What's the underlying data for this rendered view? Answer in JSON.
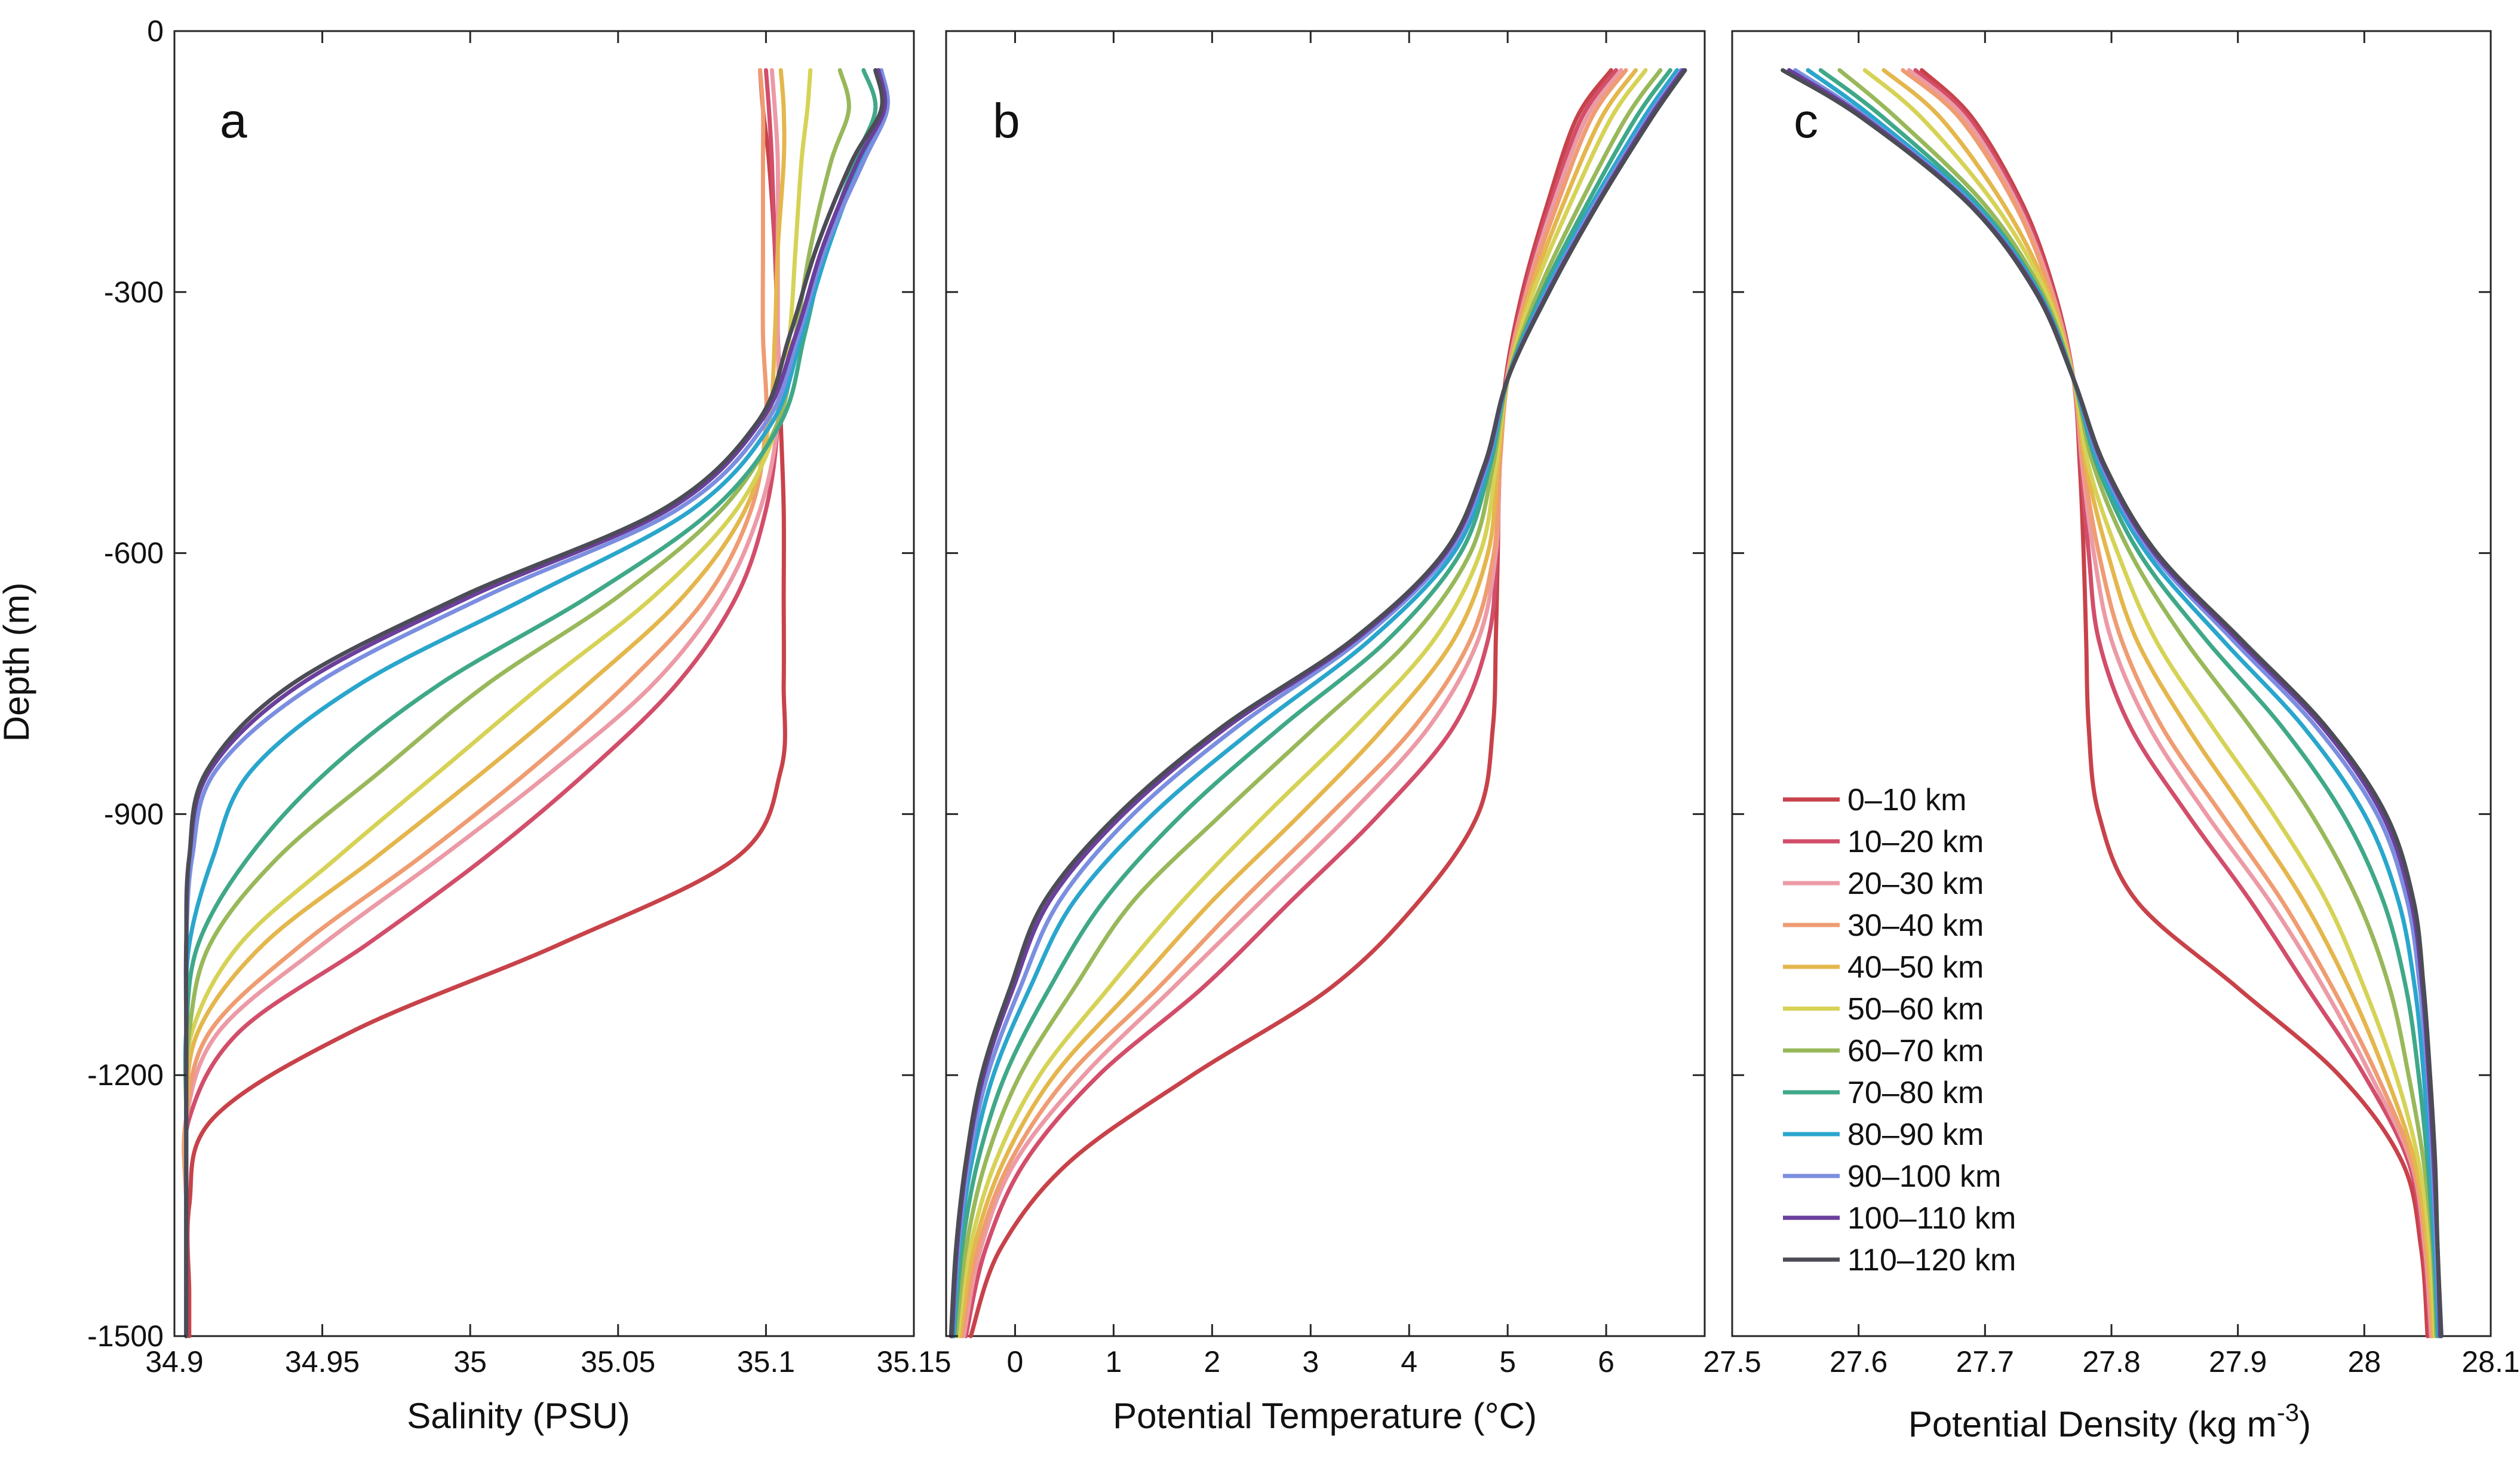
{
  "figure": {
    "ylabel": "Depth (m)"
  },
  "legend": {
    "labels": [
      "0–10 km",
      "10–20 km",
      "20–30 km",
      "30–40 km",
      "40–50 km",
      "50–60 km",
      "60–70 km",
      "70–80 km",
      "80–90 km",
      "90–100 km",
      "100–110 km",
      "110–120 km"
    ]
  },
  "colors": [
    "#c8424a",
    "#d24e6a",
    "#ec9aa6",
    "#ef9c72",
    "#e4b64c",
    "#d6d256",
    "#98b85a",
    "#3fa888",
    "#2aa6cc",
    "#7b8ee0",
    "#6b3f9c",
    "#4c4c56"
  ],
  "chart_data": [
    {
      "type": "line",
      "panel": "a",
      "title": "",
      "xlabel": "Salinity (PSU)",
      "ylabel": "Depth (m)",
      "xlim": [
        34.9,
        35.15
      ],
      "ylim": [
        -1500,
        0
      ],
      "xticks": [
        34.9,
        34.95,
        35,
        35.05,
        35.1,
        35.15
      ],
      "xtick_labels": [
        "34.9",
        "34.95",
        "35",
        "35.05",
        "35.1",
        "35.15"
      ],
      "yticks": [
        0,
        -300,
        -600,
        -900,
        -1200,
        -1500
      ],
      "ytick_labels": [
        "0",
        "-300",
        "-600",
        "-900",
        "-1200",
        "-1500"
      ],
      "depths": [
        -45,
        -90,
        -150,
        -250,
        -350,
        -450,
        -550,
        -650,
        -750,
        -850,
        -950,
        -1050,
        -1150,
        -1250,
        -1350,
        -1450,
        -1500
      ],
      "series": [
        {
          "name": "0–10 km",
          "values": [
            35.098,
            35.099,
            35.101,
            35.103,
            35.104,
            35.105,
            35.106,
            35.106,
            35.106,
            35.105,
            35.09,
            35.03,
            34.96,
            34.913,
            34.905,
            34.905,
            34.905
          ]
        },
        {
          "name": "10–20 km",
          "values": [
            35.1,
            35.101,
            35.102,
            35.103,
            35.104,
            35.104,
            35.1,
            35.09,
            35.07,
            35.04,
            35.005,
            34.965,
            34.922,
            34.905,
            34.904,
            34.904,
            34.904
          ]
        },
        {
          "name": "20–30 km",
          "values": [
            35.102,
            35.103,
            35.104,
            35.104,
            35.104,
            35.104,
            35.098,
            35.085,
            35.062,
            35.028,
            34.99,
            34.95,
            34.915,
            34.904,
            34.904,
            34.904,
            34.904
          ]
        },
        {
          "name": "30–40 km",
          "values": [
            35.098,
            35.099,
            35.099,
            35.099,
            35.099,
            35.1,
            35.095,
            35.08,
            35.053,
            35.02,
            34.983,
            34.943,
            34.912,
            34.904,
            34.904,
            34.904,
            34.904
          ]
        },
        {
          "name": "40–50 km",
          "values": [
            35.105,
            35.106,
            35.106,
            35.104,
            35.103,
            35.101,
            35.093,
            35.072,
            35.04,
            35.005,
            34.968,
            34.93,
            34.908,
            34.904,
            34.904,
            34.904,
            34.904
          ]
        },
        {
          "name": "50–60 km",
          "values": [
            35.115,
            35.114,
            35.112,
            35.11,
            35.108,
            35.104,
            35.09,
            35.062,
            35.025,
            34.99,
            34.955,
            34.922,
            34.906,
            34.904,
            34.904,
            34.904,
            34.904
          ]
        },
        {
          "name": "60–70 km",
          "values": [
            35.125,
            35.128,
            35.122,
            35.115,
            35.11,
            35.104,
            35.085,
            35.05,
            35.006,
            34.97,
            34.935,
            34.912,
            34.905,
            34.904,
            34.904,
            34.904,
            34.904
          ]
        },
        {
          "name": "70–80 km",
          "values": [
            35.133,
            35.137,
            35.13,
            35.12,
            35.113,
            35.105,
            35.082,
            35.04,
            34.99,
            34.952,
            34.925,
            34.908,
            34.904,
            34.904,
            34.904,
            34.904,
            34.904
          ]
        },
        {
          "name": "80–90 km",
          "values": [
            35.138,
            35.14,
            35.132,
            35.121,
            35.112,
            35.102,
            35.075,
            35.02,
            34.963,
            34.926,
            34.913,
            34.905,
            34.904,
            34.904,
            34.904,
            34.904,
            34.904
          ]
        },
        {
          "name": "90–100 km",
          "values": [
            35.139,
            35.141,
            35.133,
            35.12,
            35.111,
            35.1,
            35.07,
            35.005,
            34.948,
            34.914,
            34.906,
            34.904,
            34.904,
            34.904,
            34.904,
            34.904,
            34.904
          ]
        },
        {
          "name": "100–110 km",
          "values": [
            35.138,
            35.14,
            35.131,
            35.119,
            35.11,
            35.098,
            35.067,
            35.0,
            34.943,
            34.912,
            34.905,
            34.904,
            34.904,
            34.904,
            34.904,
            34.904,
            34.904
          ]
        },
        {
          "name": "110–120 km",
          "values": [
            35.137,
            35.139,
            35.129,
            35.117,
            35.108,
            35.097,
            35.065,
            34.997,
            34.94,
            34.911,
            34.905,
            34.904,
            34.904,
            34.904,
            34.904,
            34.904,
            34.904
          ]
        }
      ]
    },
    {
      "type": "line",
      "panel": "b",
      "title": "",
      "xlabel": "Potential Temperature (°C)",
      "ylabel": "",
      "xlim": [
        -0.7,
        7.0
      ],
      "ylim": [
        -1500,
        0
      ],
      "xticks": [
        0,
        1,
        2,
        3,
        4,
        5,
        6
      ],
      "xtick_labels": [
        "0",
        "1",
        "2",
        "3",
        "4",
        "5",
        "6"
      ],
      "yticks": [
        0,
        -300,
        -600,
        -900,
        -1200,
        -1500
      ],
      "ytick_labels": [
        "",
        "",
        "",
        "",
        "",
        ""
      ],
      "depths": [
        -45,
        -100,
        -200,
        -300,
        -400,
        -500,
        -600,
        -700,
        -800,
        -900,
        -1000,
        -1100,
        -1200,
        -1300,
        -1400,
        -1500
      ],
      "series": [
        {
          "name": "0–10 km",
          "values": [
            6.05,
            5.7,
            5.4,
            5.15,
            4.98,
            4.92,
            4.9,
            4.88,
            4.85,
            4.7,
            4.1,
            3.2,
            1.8,
            0.55,
            -0.15,
            -0.45
          ]
        },
        {
          "name": "10–20 km",
          "values": [
            6.1,
            5.75,
            5.43,
            5.17,
            4.99,
            4.92,
            4.89,
            4.8,
            4.45,
            3.7,
            2.8,
            1.9,
            0.85,
            0.1,
            -0.3,
            -0.5
          ]
        },
        {
          "name": "20–30 km",
          "values": [
            6.15,
            5.8,
            5.46,
            5.19,
            4.99,
            4.92,
            4.88,
            4.7,
            4.2,
            3.4,
            2.5,
            1.6,
            0.7,
            0.0,
            -0.35,
            -0.52
          ]
        },
        {
          "name": "30–40 km",
          "values": [
            6.2,
            5.85,
            5.5,
            5.2,
            5.0,
            4.92,
            4.86,
            4.62,
            4.05,
            3.2,
            2.3,
            1.45,
            0.55,
            -0.05,
            -0.38,
            -0.54
          ]
        },
        {
          "name": "40–50 km",
          "values": [
            6.3,
            5.95,
            5.56,
            5.23,
            5.0,
            4.9,
            4.8,
            4.45,
            3.75,
            2.9,
            2.0,
            1.2,
            0.4,
            -0.12,
            -0.42,
            -0.56
          ]
        },
        {
          "name": "50–60 km",
          "values": [
            6.4,
            6.05,
            5.63,
            5.26,
            5.0,
            4.88,
            4.72,
            4.25,
            3.45,
            2.55,
            1.7,
            0.95,
            0.25,
            -0.2,
            -0.46,
            -0.58
          ]
        },
        {
          "name": "60–70 km",
          "values": [
            6.55,
            6.2,
            5.73,
            5.31,
            5.0,
            4.85,
            4.62,
            4.0,
            3.05,
            2.1,
            1.2,
            0.6,
            0.05,
            -0.3,
            -0.5,
            -0.6
          ]
        },
        {
          "name": "70–80 km",
          "values": [
            6.65,
            6.3,
            5.8,
            5.35,
            5.0,
            4.82,
            4.52,
            3.78,
            2.7,
            1.7,
            0.9,
            0.35,
            -0.1,
            -0.38,
            -0.54,
            -0.62
          ]
        },
        {
          "name": "80–90 km",
          "values": [
            6.72,
            6.38,
            5.85,
            5.38,
            5.0,
            4.8,
            4.45,
            3.6,
            2.45,
            1.4,
            0.6,
            0.15,
            -0.22,
            -0.44,
            -0.57,
            -0.63
          ]
        },
        {
          "name": "90–100 km",
          "values": [
            6.76,
            6.42,
            5.88,
            5.4,
            5.0,
            4.78,
            4.4,
            3.5,
            2.25,
            1.2,
            0.45,
            0.05,
            -0.28,
            -0.47,
            -0.58,
            -0.64
          ]
        },
        {
          "name": "100–110 km",
          "values": [
            6.78,
            6.44,
            5.9,
            5.41,
            5.0,
            4.77,
            4.37,
            3.45,
            2.15,
            1.1,
            0.35,
            -0.02,
            -0.32,
            -0.49,
            -0.59,
            -0.64
          ]
        },
        {
          "name": "110–120 km",
          "values": [
            6.8,
            6.46,
            5.91,
            5.42,
            5.0,
            4.76,
            4.35,
            3.42,
            2.1,
            1.05,
            0.3,
            -0.05,
            -0.34,
            -0.5,
            -0.6,
            -0.65
          ]
        }
      ]
    },
    {
      "type": "line",
      "panel": "c",
      "title": "",
      "xlabel": "Potential Density (kg m",
      "xlabel_sup": "-3",
      "xlabel_end": ")",
      "ylabel": "",
      "xlim": [
        27.5,
        28.1
      ],
      "ylim": [
        -1500,
        0
      ],
      "xticks": [
        27.5,
        27.6,
        27.7,
        27.8,
        27.9,
        28.0,
        28.1
      ],
      "xtick_labels": [
        "27.5",
        "27.6",
        "27.7",
        "27.8",
        "27.9",
        "28",
        "28.1"
      ],
      "yticks": [
        0,
        -300,
        -600,
        -900,
        -1200,
        -1500
      ],
      "ytick_labels": [
        "",
        "",
        "",
        "",
        "",
        ""
      ],
      "depths": [
        -45,
        -100,
        -200,
        -300,
        -400,
        -500,
        -600,
        -700,
        -800,
        -900,
        -1000,
        -1100,
        -1200,
        -1300,
        -1400,
        -1500
      ],
      "series": [
        {
          "name": "0–10 km",
          "values": [
            27.65,
            27.69,
            27.73,
            27.755,
            27.77,
            27.775,
            27.778,
            27.78,
            27.782,
            27.79,
            27.82,
            27.9,
            27.98,
            28.03,
            28.045,
            28.05
          ]
        },
        {
          "name": "10–20 km",
          "values": [
            27.645,
            27.687,
            27.728,
            27.754,
            27.77,
            27.776,
            27.782,
            27.79,
            27.815,
            27.86,
            27.91,
            27.955,
            28.0,
            28.035,
            28.047,
            28.052
          ]
        },
        {
          "name": "20–30 km",
          "values": [
            27.64,
            27.684,
            27.726,
            27.753,
            27.77,
            27.777,
            27.786,
            27.8,
            27.83,
            27.875,
            27.925,
            27.968,
            28.005,
            28.037,
            28.048,
            28.053
          ]
        },
        {
          "name": "30–40 km",
          "values": [
            27.635,
            27.68,
            27.724,
            27.752,
            27.77,
            27.778,
            27.79,
            27.808,
            27.84,
            27.887,
            27.935,
            27.975,
            28.01,
            28.038,
            28.049,
            28.054
          ]
        },
        {
          "name": "40–50 km",
          "values": [
            27.62,
            27.665,
            27.715,
            27.75,
            27.77,
            27.78,
            27.797,
            27.82,
            27.86,
            27.907,
            27.952,
            27.988,
            28.017,
            28.04,
            28.05,
            28.055
          ]
        },
        {
          "name": "50–60 km",
          "values": [
            27.605,
            27.65,
            27.708,
            27.748,
            27.77,
            27.782,
            27.805,
            27.835,
            27.88,
            27.928,
            27.97,
            28.0,
            28.025,
            28.043,
            28.052,
            28.056
          ]
        },
        {
          "name": "60–70 km",
          "values": [
            27.585,
            27.63,
            27.7,
            27.745,
            27.77,
            27.786,
            27.815,
            27.858,
            27.91,
            27.958,
            27.995,
            28.02,
            28.035,
            28.047,
            28.054,
            28.057
          ]
        },
        {
          "name": "70–80 km",
          "values": [
            27.57,
            27.62,
            27.695,
            27.743,
            27.77,
            27.789,
            27.822,
            27.875,
            27.935,
            27.983,
            28.015,
            28.033,
            28.043,
            28.05,
            28.055,
            28.058
          ]
        },
        {
          "name": "80–90 km",
          "values": [
            27.56,
            27.612,
            27.692,
            27.742,
            27.77,
            27.791,
            27.828,
            27.888,
            27.952,
            28.0,
            28.027,
            28.04,
            28.047,
            28.052,
            28.056,
            28.059
          ]
        },
        {
          "name": "90–100 km",
          "values": [
            27.55,
            27.607,
            27.69,
            27.741,
            27.77,
            27.793,
            27.832,
            27.896,
            27.962,
            28.01,
            28.034,
            28.044,
            28.05,
            28.054,
            28.057,
            28.06
          ]
        },
        {
          "name": "100–110 km",
          "values": [
            27.545,
            27.605,
            27.689,
            27.741,
            27.77,
            27.794,
            27.834,
            27.9,
            27.967,
            28.014,
            28.037,
            28.046,
            28.051,
            28.055,
            28.058,
            28.06
          ]
        },
        {
          "name": "110–120 km",
          "values": [
            27.54,
            27.603,
            27.688,
            27.74,
            27.77,
            27.795,
            27.836,
            27.903,
            27.97,
            28.017,
            28.039,
            28.047,
            28.052,
            28.056,
            28.058,
            28.061
          ]
        }
      ]
    }
  ]
}
